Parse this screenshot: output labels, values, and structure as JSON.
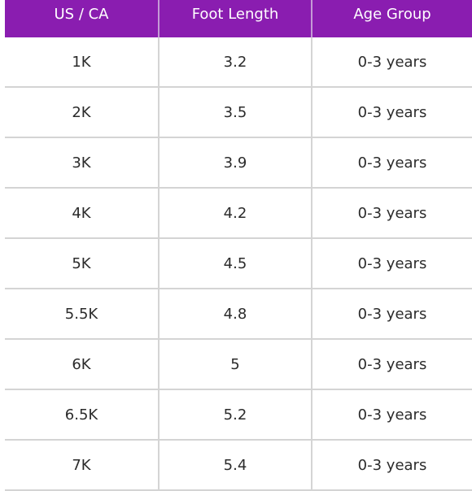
{
  "table": {
    "headers": [
      "US / CA",
      "Foot Length",
      "Age Group"
    ],
    "rows": [
      [
        "1K",
        "3.2",
        "0-3 years"
      ],
      [
        "2K",
        "3.5",
        "0-3 years"
      ],
      [
        "3K",
        "3.9",
        "0-3 years"
      ],
      [
        "4K",
        "4.2",
        "0-3 years"
      ],
      [
        "5K",
        "4.5",
        "0-3 years"
      ],
      [
        "5.5K",
        "4.8",
        "0-3 years"
      ],
      [
        "6K",
        "5",
        "0-3 years"
      ],
      [
        "6.5K",
        "5.2",
        "0-3 years"
      ],
      [
        "7K",
        "5.4",
        "0-3 years"
      ]
    ],
    "header_bg": "#8a1db0",
    "header_text_color": "#ffffff"
  }
}
